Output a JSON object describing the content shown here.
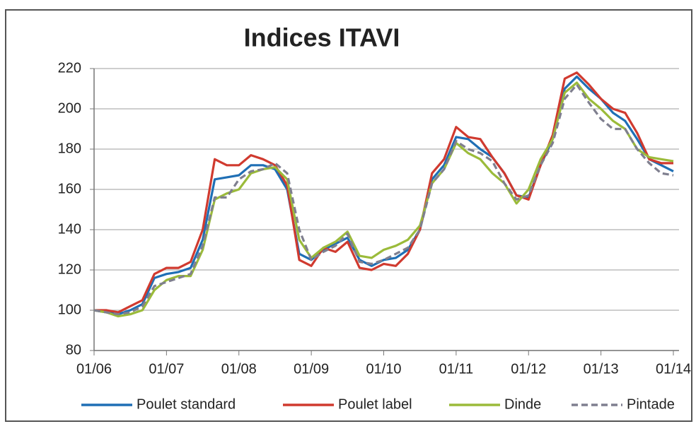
{
  "chart_data": {
    "type": "line",
    "title": "Indices ITAVI",
    "categories": [
      "01/06",
      null,
      null,
      null,
      null,
      null,
      "01/07",
      null,
      null,
      null,
      null,
      null,
      "01/08",
      null,
      null,
      null,
      null,
      null,
      "01/09",
      null,
      null,
      null,
      null,
      null,
      "01/10",
      null,
      null,
      null,
      null,
      null,
      "01/11",
      null,
      null,
      null,
      null,
      null,
      "01/12",
      null,
      null,
      null,
      null,
      null,
      "01/13",
      null,
      null,
      null,
      null,
      null,
      "01/14"
    ],
    "series": [
      {
        "name": "Poulet standard",
        "color": "#1f6fb5",
        "dashed": false,
        "values": [
          100,
          99,
          98,
          100,
          103,
          116,
          118,
          119,
          121,
          135,
          165,
          166,
          167,
          172,
          172,
          170,
          160,
          128,
          125,
          130,
          133,
          136,
          125,
          122,
          125,
          126,
          130,
          140,
          165,
          172,
          186,
          185,
          180,
          176,
          168,
          157,
          156,
          172,
          185,
          210,
          216,
          210,
          205,
          198,
          194,
          185,
          175,
          172,
          169
        ]
      },
      {
        "name": "Poulet label",
        "color": "#d03a2f",
        "dashed": false,
        "values": [
          100,
          100,
          99,
          102,
          105,
          118,
          121,
          121,
          124,
          140,
          175,
          172,
          172,
          177,
          175,
          172,
          162,
          125,
          122,
          131,
          129,
          134,
          121,
          120,
          123,
          122,
          128,
          140,
          168,
          175,
          191,
          186,
          185,
          176,
          168,
          157,
          155,
          172,
          187,
          215,
          218,
          212,
          205,
          200,
          198,
          188,
          175,
          173,
          173
        ]
      },
      {
        "name": "Dinde",
        "color": "#9bbb3a",
        "dashed": false,
        "values": [
          100,
          99,
          97,
          98,
          100,
          110,
          115,
          117,
          117,
          130,
          155,
          158,
          160,
          168,
          170,
          171,
          165,
          135,
          126,
          131,
          134,
          139,
          127,
          126,
          130,
          132,
          135,
          142,
          163,
          170,
          183,
          178,
          175,
          168,
          163,
          153,
          160,
          175,
          185,
          208,
          213,
          205,
          200,
          194,
          190,
          180,
          176,
          175,
          174
        ]
      },
      {
        "name": "Pintade",
        "color": "#7f7f8f",
        "dashed": true,
        "values": [
          100,
          99,
          98,
          99,
          102,
          112,
          114,
          116,
          118,
          132,
          156,
          156,
          165,
          169,
          170,
          173,
          168,
          140,
          125,
          129,
          132,
          138,
          124,
          123,
          125,
          128,
          131,
          140,
          163,
          170,
          184,
          180,
          178,
          174,
          163,
          155,
          157,
          172,
          183,
          205,
          212,
          203,
          195,
          190,
          190,
          180,
          173,
          168,
          167
        ]
      }
    ],
    "ylim": [
      80,
      220
    ],
    "yticks": [
      80,
      100,
      120,
      140,
      160,
      180,
      200,
      220
    ],
    "grid": true,
    "legend": "bottom"
  }
}
